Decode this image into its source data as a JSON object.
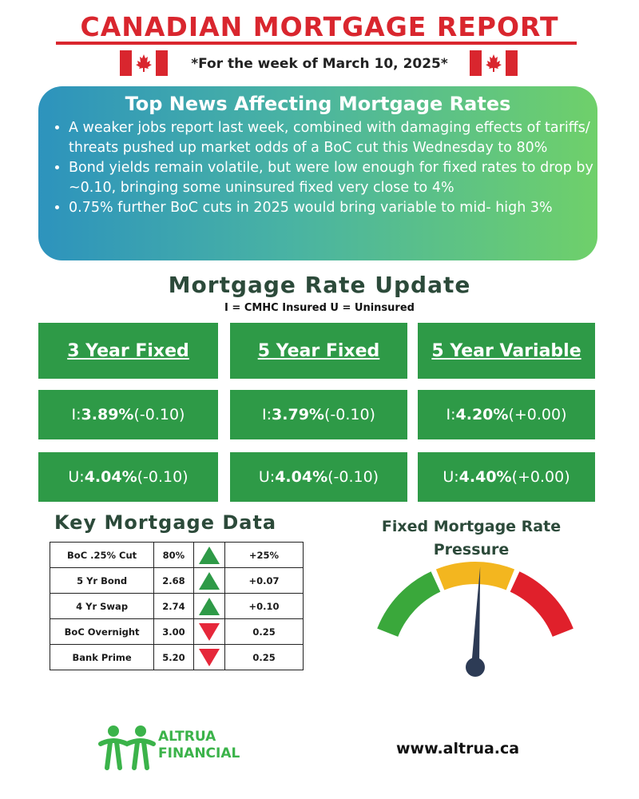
{
  "header": {
    "title": "CANADIAN MORTGAGE REPORT",
    "subtitle": "*For the week of March 10, 2025*"
  },
  "colors": {
    "title_red": "#d9262e",
    "box_green": "#2e9a47",
    "heading_dark_green": "#2c4a3a",
    "arrow_up_green": "#2e9a47",
    "arrow_down_red": "#e6273a"
  },
  "news": {
    "heading": "Top News Affecting Mortgage Rates",
    "items": [
      "A weaker jobs report last week, combined with damaging effects of tariffs/ threats pushed up market odds of a BoC cut this Wednesday to 80%",
      "Bond yields remain volatile, but were low enough for fixed rates to drop by ~0.10, bringing some uninsured fixed very close to 4%",
      "0.75% further BoC cuts in 2025 would bring variable to mid- high 3%"
    ]
  },
  "rates": {
    "heading": "Mortgage Rate Update",
    "legend": "I = CMHC Insured  U = Uninsured",
    "columns": [
      {
        "title": "3 Year Fixed",
        "insured_prefix": "I: ",
        "insured_rate": "3.89%",
        "insured_change": " (-0.10)",
        "uninsured_prefix": "U: ",
        "uninsured_rate": "4.04%",
        "uninsured_change": " (-0.10)"
      },
      {
        "title": "5 Year Fixed",
        "insured_prefix": "I: ",
        "insured_rate": "3.79%",
        "insured_change": " (-0.10)",
        "uninsured_prefix": "U: ",
        "uninsured_rate": "4.04%",
        "uninsured_change": " (-0.10)"
      },
      {
        "title": "5 Year Variable",
        "insured_prefix": "I: ",
        "insured_rate": "4.20%",
        "insured_change": " (+0.00)",
        "uninsured_prefix": "U: ",
        "uninsured_rate": "4.40%",
        "uninsured_change": " (+0.00)"
      }
    ]
  },
  "key_data": {
    "heading": "Key Mortgage Data",
    "rows": [
      {
        "label": "BoC .25% Cut",
        "value": "80%",
        "direction": "up",
        "change": "+25%"
      },
      {
        "label": "5 Yr Bond",
        "value": "2.68",
        "direction": "up",
        "change": "+0.07"
      },
      {
        "label": "4 Yr Swap",
        "value": "2.74",
        "direction": "up",
        "change": "+0.10"
      },
      {
        "label": "BoC Overnight",
        "value": "3.00",
        "direction": "down",
        "change": "0.25"
      },
      {
        "label": "Bank Prime",
        "value": "5.20",
        "direction": "down",
        "change": "0.25"
      }
    ]
  },
  "pressure": {
    "title_line1": "Fixed Mortgage Rate",
    "title_line2": "Pressure",
    "level": 0.52,
    "segment_colors": [
      "#3aa83b",
      "#f3b61f",
      "#e0202b"
    ]
  },
  "footer": {
    "logo_line1": "ALTRUA",
    "logo_line2": "FINANCIAL",
    "website": "www.altrua.ca"
  }
}
